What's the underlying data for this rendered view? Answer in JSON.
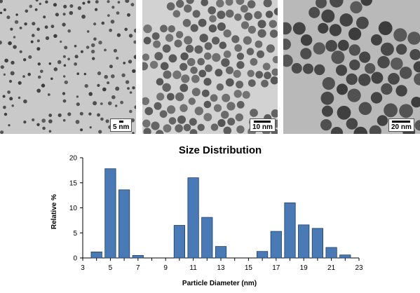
{
  "micrographs": [
    {
      "scale_label": "5 nm",
      "background": "#c9c9c9",
      "particle": "#3a3a3a"
    },
    {
      "scale_label": "10 nm",
      "background": "#d2d2d2",
      "particle": "#555555"
    },
    {
      "scale_label": "20 nm",
      "background": "#b9b9b9",
      "particle": "#3c3c3c"
    }
  ],
  "chart_data": {
    "type": "bar",
    "title": "Size Distribution",
    "xlabel": "Particle Diameter (nm)",
    "ylabel": "Relative %",
    "xlim": [
      3,
      23
    ],
    "ylim": [
      0,
      20
    ],
    "x_ticks": [
      3,
      5,
      7,
      9,
      11,
      13,
      15,
      17,
      19,
      21,
      23
    ],
    "y_ticks": [
      0,
      5,
      10,
      15,
      20
    ],
    "grid": false,
    "bar_color": "#4a7ab5",
    "x": [
      4,
      5,
      6,
      7,
      10,
      11,
      12,
      13,
      16,
      17,
      18,
      19,
      20,
      21,
      22
    ],
    "values": [
      1.2,
      17.8,
      13.6,
      0.5,
      6.5,
      16.0,
      8.1,
      2.3,
      1.3,
      5.3,
      11.0,
      6.6,
      5.9,
      2.1,
      0.6
    ]
  }
}
